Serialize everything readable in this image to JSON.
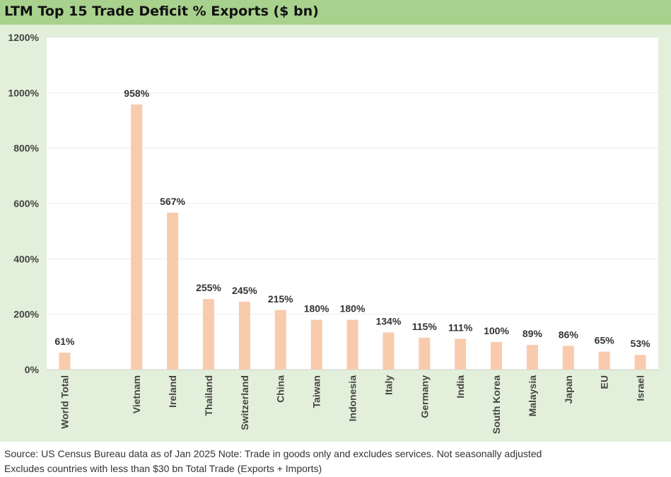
{
  "title": "LTM Top 15 Trade Deficit % Exports ($ bn)",
  "footnotes": [
    "Source: US Census Bureau data as of Jan 2025 Note: Trade in goods only and excludes services. Not seasonally adjusted",
    "Excludes countries with less than $30 bn Total Trade (Exports + Imports)"
  ],
  "colors": {
    "title_band": "#a9d18e",
    "chart_background": "#e2efda",
    "plot_background": "#ffffff",
    "bar": "#f8cbad"
  },
  "chart_data": {
    "type": "bar",
    "categories": [
      "World Total",
      "",
      "Vietnam",
      "Ireland",
      "Thailand",
      "Switzerland",
      "China",
      "Taiwan",
      "Indonesia",
      "Italy",
      "Germany",
      "India",
      "South Korea",
      "Malaysia",
      "Japan",
      "EU",
      "Israel"
    ],
    "values": [
      61,
      null,
      958,
      567,
      255,
      245,
      215,
      180,
      180,
      134,
      115,
      111,
      100,
      89,
      86,
      65,
      53
    ],
    "data_labels": [
      "61%",
      "",
      "958%",
      "567%",
      "255%",
      "245%",
      "215%",
      "180%",
      "180%",
      "134%",
      "115%",
      "111%",
      "100%",
      "89%",
      "86%",
      "65%",
      "53%"
    ],
    "y_ticks": [
      0,
      200,
      400,
      600,
      800,
      1000,
      1200
    ],
    "y_tick_labels": [
      "0%",
      "200%",
      "400%",
      "600%",
      "800%",
      "1000%",
      "1200%"
    ],
    "ylim": [
      0,
      1200
    ],
    "title": "LTM Top 15 Trade Deficit % Exports ($ bn)",
    "xlabel": "",
    "ylabel": "",
    "grid": true,
    "legend": "none"
  }
}
